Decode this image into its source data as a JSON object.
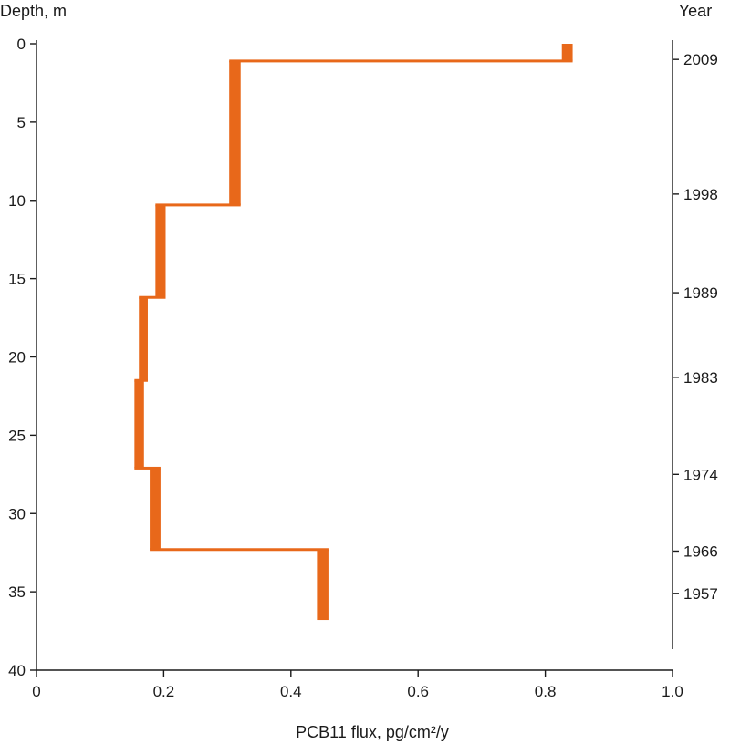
{
  "chart_data": {
    "type": "line",
    "xlabel": "PCB11 flux, pg/cm²/y",
    "ylabel": "Depth, m",
    "right_axis_label": "Year",
    "xlim": [
      0,
      1.0
    ],
    "ylim": [
      0,
      40
    ],
    "y_inverted": true,
    "x_ticks": [
      "0",
      "0.2",
      "0.4",
      "0.6",
      "0.8",
      "1.0"
    ],
    "x_tick_values": [
      0,
      0.2,
      0.4,
      0.6,
      0.8,
      1.0
    ],
    "y_ticks": [
      "0",
      "5",
      "10",
      "15",
      "20",
      "25",
      "30",
      "35",
      "40"
    ],
    "y_tick_values": [
      0,
      5,
      10,
      15,
      20,
      25,
      30,
      35,
      40
    ],
    "year_ticks": [
      {
        "depth": 1.0,
        "label": "2009"
      },
      {
        "depth": 9.6,
        "label": "1998"
      },
      {
        "depth": 15.9,
        "label": "1989"
      },
      {
        "depth": 21.3,
        "label": "1983"
      },
      {
        "depth": 27.5,
        "label": "1974"
      },
      {
        "depth": 32.4,
        "label": "1966"
      },
      {
        "depth": 35.1,
        "label": "1957"
      }
    ],
    "series_color": "#E8681A",
    "series": [
      {
        "segments": [
          {
            "depth_top": 0.0,
            "depth_bottom": 1.1,
            "flux_min": 0.826,
            "flux_max": 0.843
          },
          {
            "depth_top": 1.1,
            "depth_bottom": 10.3,
            "flux_min": 0.303,
            "flux_max": 0.321
          },
          {
            "depth_top": 10.3,
            "depth_bottom": 16.2,
            "flux_min": 0.187,
            "flux_max": 0.203
          },
          {
            "depth_top": 16.2,
            "depth_bottom": 21.5,
            "flux_min": 0.161,
            "flux_max": 0.175
          },
          {
            "depth_top": 21.5,
            "depth_bottom": 27.1,
            "flux_min": 0.154,
            "flux_max": 0.169
          },
          {
            "depth_top": 27.1,
            "depth_bottom": 32.3,
            "flux_min": 0.178,
            "flux_max": 0.195
          },
          {
            "depth_top": 32.3,
            "depth_bottom": 36.8,
            "flux_min": 0.441,
            "flux_max": 0.459
          }
        ]
      }
    ]
  }
}
